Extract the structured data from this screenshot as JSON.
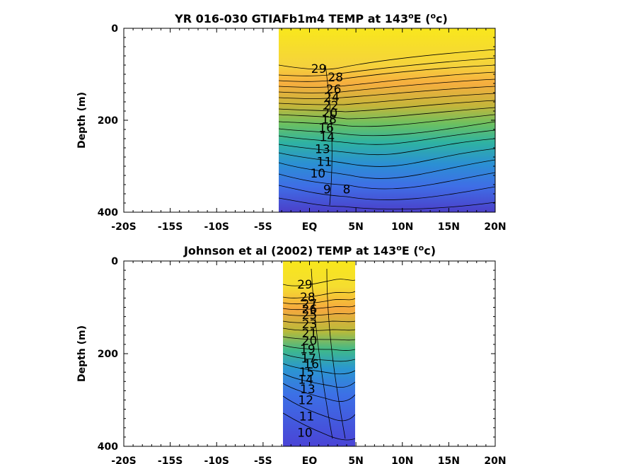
{
  "chart_data": [
    {
      "type": "heatmap",
      "title_main": "YR 016-030 GTIAFb1m4 TEMP at 143",
      "title_deg": "o",
      "title_mid": "E (",
      "title_unit_sup": "o",
      "title_unit": "c)",
      "ylabel": "Depth (m)",
      "xlim": [
        -20,
        20
      ],
      "ylim": [
        400,
        0
      ],
      "x_ticks": [
        -20,
        -15,
        -10,
        -5,
        0,
        5,
        10,
        15,
        20
      ],
      "x_tick_labels": [
        "-20S",
        "-15S",
        "-10S",
        "-5S",
        "EQ",
        "5N",
        "10N",
        "15N",
        "20N"
      ],
      "y_ticks": [
        0,
        200,
        400
      ],
      "y_tick_labels": [
        "0",
        "200",
        "400"
      ],
      "data_extent_x": [
        -3.5,
        20
      ],
      "contour_labels": [
        {
          "text": "29",
          "x": 1.0,
          "y": 88
        },
        {
          "text": "28",
          "x": 2.8,
          "y": 106
        },
        {
          "text": "26",
          "x": 2.6,
          "y": 132
        },
        {
          "text": "24",
          "x": 2.4,
          "y": 150
        },
        {
          "text": "22",
          "x": 2.3,
          "y": 168
        },
        {
          "text": "20",
          "x": 2.2,
          "y": 184
        },
        {
          "text": "18",
          "x": 2.1,
          "y": 198
        },
        {
          "text": "16",
          "x": 1.8,
          "y": 216
        },
        {
          "text": "14",
          "x": 1.9,
          "y": 236
        },
        {
          "text": "13",
          "x": 1.4,
          "y": 262
        },
        {
          "text": "11",
          "x": 1.6,
          "y": 290
        },
        {
          "text": "10",
          "x": 0.9,
          "y": 315
        },
        {
          "text": "9",
          "x": 1.9,
          "y": 350
        },
        {
          "text": "8",
          "x": 4.0,
          "y": 350
        }
      ]
    },
    {
      "type": "heatmap",
      "title_main": "Johnson et al (2002) TEMP at 143",
      "title_deg": "o",
      "title_mid": "E (",
      "title_unit_sup": "o",
      "title_unit": "c)",
      "ylabel": "Depth (m)",
      "xlim": [
        -20,
        20
      ],
      "ylim": [
        400,
        0
      ],
      "x_ticks": [
        -20,
        -15,
        -10,
        -5,
        0,
        5,
        10,
        15,
        20
      ],
      "x_tick_labels": [
        "-20S",
        "-15S",
        "-10S",
        "-5S",
        "EQ",
        "5N",
        "10N",
        "15N",
        "20N"
      ],
      "y_ticks": [
        0,
        200,
        400
      ],
      "y_tick_labels": [
        "0",
        "200",
        "400"
      ],
      "data_extent_x": [
        -3,
        5
      ],
      "contour_labels": [
        {
          "text": "29",
          "x": -0.5,
          "y": 50
        },
        {
          "text": "28",
          "x": -0.2,
          "y": 78
        },
        {
          "text": "27",
          "x": 0.0,
          "y": 92
        },
        {
          "text": "26",
          "x": 0.0,
          "y": 104
        },
        {
          "text": "25",
          "x": 0.0,
          "y": 116
        },
        {
          "text": "23",
          "x": 0.0,
          "y": 136
        },
        {
          "text": "21",
          "x": 0.0,
          "y": 156
        },
        {
          "text": "20",
          "x": 0.0,
          "y": 172
        },
        {
          "text": "19",
          "x": -0.2,
          "y": 190
        },
        {
          "text": "17",
          "x": -0.1,
          "y": 210
        },
        {
          "text": "16",
          "x": 0.2,
          "y": 222
        },
        {
          "text": "15",
          "x": -0.3,
          "y": 240
        },
        {
          "text": "14",
          "x": -0.4,
          "y": 256
        },
        {
          "text": "13",
          "x": -0.2,
          "y": 276
        },
        {
          "text": "12",
          "x": -0.4,
          "y": 300
        },
        {
          "text": "11",
          "x": -0.3,
          "y": 335
        },
        {
          "text": "10",
          "x": -0.5,
          "y": 370
        }
      ]
    }
  ]
}
